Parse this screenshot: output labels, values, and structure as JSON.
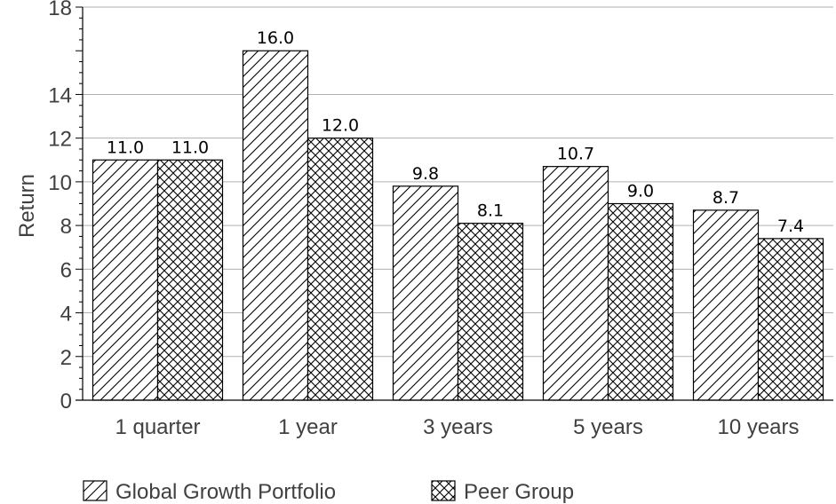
{
  "chart_data": {
    "type": "bar",
    "categories": [
      "1 quarter",
      "1 year",
      "3 years",
      "5 years",
      "10 years"
    ],
    "series": [
      {
        "name": "Global Growth Portfolio",
        "values": [
          11.0,
          16.0,
          9.8,
          10.7,
          8.7
        ],
        "pattern": "diagonal-hatch"
      },
      {
        "name": "Peer Group",
        "values": [
          11.0,
          12.0,
          8.1,
          9.0,
          7.4
        ],
        "pattern": "cross-hatch"
      }
    ],
    "title": "",
    "xlabel": "",
    "ylabel": "Return",
    "ylim": [
      0,
      18
    ],
    "yticks": [
      0,
      2,
      4,
      6,
      8,
      10,
      12,
      14,
      18
    ],
    "grid": true,
    "legend_position": "bottom-left",
    "colors": {
      "bar_fill": "#ffffff",
      "bar_stroke": "#000000",
      "grid": "#b0b0b0",
      "text": "#404040"
    }
  }
}
